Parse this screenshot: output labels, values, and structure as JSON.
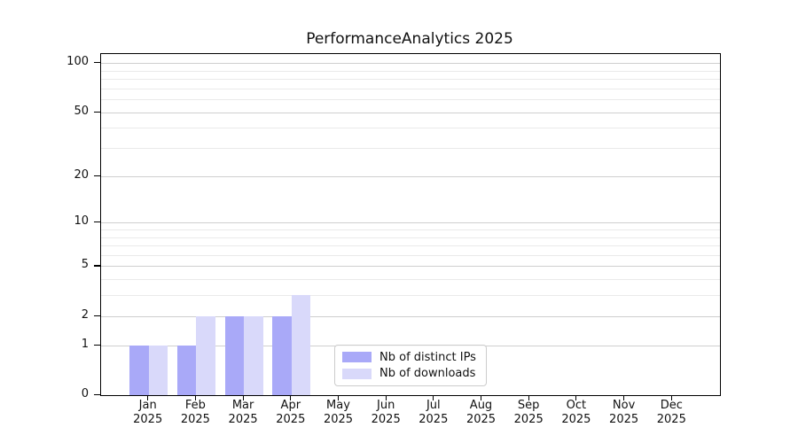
{
  "chart_data": {
    "type": "bar",
    "title": "PerformanceAnalytics 2025",
    "categories": [
      "Jan 2025",
      "Feb 2025",
      "Mar 2025",
      "Apr 2025",
      "May 2025",
      "Jun 2025",
      "Jul 2025",
      "Aug 2025",
      "Sep 2025",
      "Oct 2025",
      "Nov 2025",
      "Dec 2025"
    ],
    "series": [
      {
        "name": "Nb of distinct IPs",
        "color": "#a9a9f8",
        "values": [
          1,
          1,
          2,
          2,
          0,
          0,
          0,
          0,
          0,
          0,
          0,
          0
        ]
      },
      {
        "name": "Nb of downloads",
        "color": "#d9d9fa",
        "values": [
          1,
          2,
          2,
          3,
          0,
          0,
          0,
          0,
          0,
          0,
          0,
          0
        ]
      }
    ],
    "xlabel": "",
    "ylabel": "",
    "y_scale": "log1p",
    "ylim": [
      0,
      113.3
    ],
    "y_ticks": [
      0,
      1,
      2,
      5,
      10,
      20,
      50,
      100
    ],
    "y_minor_gridlines": [
      3,
      4,
      6,
      7,
      8,
      9,
      30,
      40,
      60,
      70,
      80,
      90
    ],
    "grid": "horizontal",
    "legend_position": "inside-bottom-center",
    "bar_group_width_fraction": 0.8
  },
  "colors": {
    "background": "#ffffff",
    "axis": "#000000",
    "text": "#111111",
    "grid_major": "#cfcfcf",
    "grid_minor": "#eaeaea",
    "legend_border": "#cccccc"
  }
}
